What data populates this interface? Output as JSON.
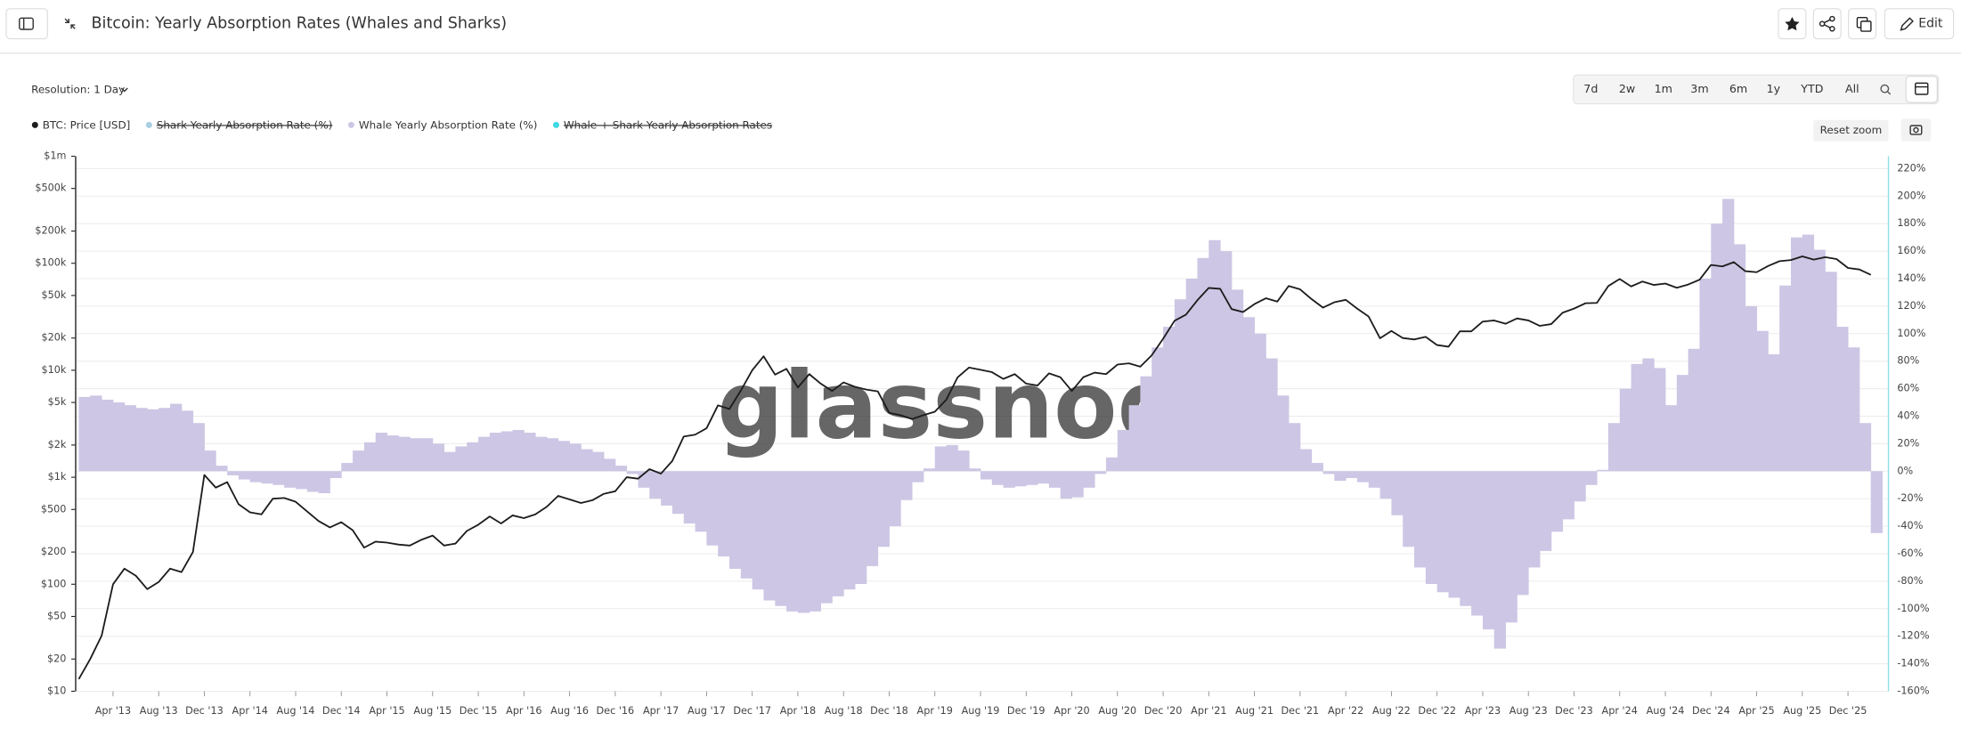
{
  "ui": {
    "title": "Bitcoin: Yearly Absorption Rates (Whales and Sharks)",
    "edit": "Edit",
    "resolution": "Resolution: 1 Day",
    "ranges": [
      "7d",
      "2w",
      "1m",
      "3m",
      "6m",
      "1y",
      "YTD",
      "All"
    ],
    "reset_zoom": "Reset zoom"
  },
  "chart_data": {
    "type": "line",
    "watermark": "glassnode",
    "x": [
      "2013-01",
      "2013-02",
      "2013-03",
      "2013-04",
      "2013-05",
      "2013-06",
      "2013-07",
      "2013-08",
      "2013-09",
      "2013-10",
      "2013-11",
      "2013-12",
      "2014-01",
      "2014-02",
      "2014-03",
      "2014-04",
      "2014-05",
      "2014-06",
      "2014-07",
      "2014-08",
      "2014-09",
      "2014-10",
      "2014-11",
      "2014-12",
      "2015-01",
      "2015-02",
      "2015-03",
      "2015-04",
      "2015-05",
      "2015-06",
      "2015-07",
      "2015-08",
      "2015-09",
      "2015-10",
      "2015-11",
      "2015-12",
      "2016-01",
      "2016-02",
      "2016-03",
      "2016-04",
      "2016-05",
      "2016-06",
      "2016-07",
      "2016-08",
      "2016-09",
      "2016-10",
      "2016-11",
      "2016-12",
      "2017-01",
      "2017-02",
      "2017-03",
      "2017-04",
      "2017-05",
      "2017-06",
      "2017-07",
      "2017-08",
      "2017-09",
      "2017-10",
      "2017-11",
      "2017-12",
      "2018-01",
      "2018-02",
      "2018-03",
      "2018-04",
      "2018-05",
      "2018-06",
      "2018-07",
      "2018-08",
      "2018-09",
      "2018-10",
      "2018-11",
      "2018-12",
      "2019-01",
      "2019-02",
      "2019-03",
      "2019-04",
      "2019-05",
      "2019-06",
      "2019-07",
      "2019-08",
      "2019-09",
      "2019-10",
      "2019-11",
      "2019-12",
      "2020-01",
      "2020-02",
      "2020-03",
      "2020-04",
      "2020-05",
      "2020-06",
      "2020-07",
      "2020-08",
      "2020-09",
      "2020-10",
      "2020-11",
      "2020-12",
      "2021-01",
      "2021-02",
      "2021-03",
      "2021-04",
      "2021-05",
      "2021-06",
      "2021-07",
      "2021-08",
      "2021-09",
      "2021-10",
      "2021-11",
      "2021-12",
      "2022-01",
      "2022-02",
      "2022-03",
      "2022-04",
      "2022-05",
      "2022-06",
      "2022-07",
      "2022-08",
      "2022-09",
      "2022-10",
      "2022-11",
      "2022-12",
      "2023-01",
      "2023-02",
      "2023-03",
      "2023-04",
      "2023-05",
      "2023-06",
      "2023-07",
      "2023-08",
      "2023-09",
      "2023-10",
      "2023-11",
      "2023-12",
      "2024-01",
      "2024-02",
      "2024-03",
      "2024-04",
      "2024-05",
      "2024-06",
      "2024-07",
      "2024-08",
      "2024-09",
      "2024-10",
      "2024-11",
      "2024-12",
      "2025-01",
      "2025-02",
      "2025-03",
      "2025-04",
      "2025-05",
      "2025-06",
      "2025-07",
      "2025-08",
      "2025-09",
      "2025-10",
      "2025-11",
      "2025-12",
      "2026-01",
      "2026-02"
    ],
    "xlim": [
      "2013-01",
      "2026-03"
    ],
    "xticks": [
      {
        "value": "2013-04",
        "label": "Apr '13"
      },
      {
        "value": "2013-08",
        "label": "Aug '13"
      },
      {
        "value": "2013-12",
        "label": "Dec '13"
      },
      {
        "value": "2014-04",
        "label": "Apr '14"
      },
      {
        "value": "2014-08",
        "label": "Aug '14"
      },
      {
        "value": "2014-12",
        "label": "Dec '14"
      },
      {
        "value": "2015-04",
        "label": "Apr '15"
      },
      {
        "value": "2015-08",
        "label": "Aug '15"
      },
      {
        "value": "2015-12",
        "label": "Dec '15"
      },
      {
        "value": "2016-04",
        "label": "Apr '16"
      },
      {
        "value": "2016-08",
        "label": "Aug '16"
      },
      {
        "value": "2016-12",
        "label": "Dec '16"
      },
      {
        "value": "2017-04",
        "label": "Apr '17"
      },
      {
        "value": "2017-08",
        "label": "Aug '17"
      },
      {
        "value": "2017-12",
        "label": "Dec '17"
      },
      {
        "value": "2018-04",
        "label": "Apr '18"
      },
      {
        "value": "2018-08",
        "label": "Aug '18"
      },
      {
        "value": "2018-12",
        "label": "Dec '18"
      },
      {
        "value": "2019-04",
        "label": "Apr '19"
      },
      {
        "value": "2019-08",
        "label": "Aug '19"
      },
      {
        "value": "2019-12",
        "label": "Dec '19"
      },
      {
        "value": "2020-04",
        "label": "Apr '20"
      },
      {
        "value": "2020-08",
        "label": "Aug '20"
      },
      {
        "value": "2020-12",
        "label": "Dec '20"
      },
      {
        "value": "2021-04",
        "label": "Apr '21"
      },
      {
        "value": "2021-08",
        "label": "Aug '21"
      },
      {
        "value": "2021-12",
        "label": "Dec '21"
      },
      {
        "value": "2022-04",
        "label": "Apr '22"
      },
      {
        "value": "2022-08",
        "label": "Aug '22"
      },
      {
        "value": "2022-12",
        "label": "Dec '22"
      },
      {
        "value": "2023-04",
        "label": "Apr '23"
      },
      {
        "value": "2023-08",
        "label": "Aug '23"
      },
      {
        "value": "2023-12",
        "label": "Dec '23"
      },
      {
        "value": "2024-04",
        "label": "Apr '24"
      },
      {
        "value": "2024-08",
        "label": "Aug '24"
      },
      {
        "value": "2024-12",
        "label": "Dec '24"
      },
      {
        "value": "2025-04",
        "label": "Apr '25"
      },
      {
        "value": "2025-08",
        "label": "Aug '25"
      },
      {
        "value": "2025-12",
        "label": "Dec '25"
      }
    ],
    "ylim": [
      10,
      1000000
    ],
    "ylog": true,
    "yticks": [
      {
        "value": 10,
        "label": "$10"
      },
      {
        "value": 20,
        "label": "$20"
      },
      {
        "value": 50,
        "label": "$50"
      },
      {
        "value": 100,
        "label": "$100"
      },
      {
        "value": 200,
        "label": "$200"
      },
      {
        "value": 500,
        "label": "$500"
      },
      {
        "value": 1000,
        "label": "$1k"
      },
      {
        "value": 2000,
        "label": "$2k"
      },
      {
        "value": 5000,
        "label": "$5k"
      },
      {
        "value": 10000,
        "label": "$10k"
      },
      {
        "value": 20000,
        "label": "$20k"
      },
      {
        "value": 50000,
        "label": "$50k"
      },
      {
        "value": 100000,
        "label": "$100k"
      },
      {
        "value": 200000,
        "label": "$200k"
      },
      {
        "value": 500000,
        "label": "$500k"
      },
      {
        "value": 1000000,
        "label": "$1m"
      }
    ],
    "y2lim": [
      -160,
      229
    ],
    "y2ticks": [
      {
        "value": -160,
        "label": "-160%"
      },
      {
        "value": -140,
        "label": "-140%"
      },
      {
        "value": -120,
        "label": "-120%"
      },
      {
        "value": -100,
        "label": "-100%"
      },
      {
        "value": -80,
        "label": "-80%"
      },
      {
        "value": -60,
        "label": "-60%"
      },
      {
        "value": -40,
        "label": "-40%"
      },
      {
        "value": -20,
        "label": "-20%"
      },
      {
        "value": 0,
        "label": "0%"
      },
      {
        "value": 20,
        "label": "20%"
      },
      {
        "value": 40,
        "label": "40%"
      },
      {
        "value": 60,
        "label": "60%"
      },
      {
        "value": 80,
        "label": "80%"
      },
      {
        "value": 100,
        "label": "100%"
      },
      {
        "value": 120,
        "label": "120%"
      },
      {
        "value": 140,
        "label": "140%"
      },
      {
        "value": 160,
        "label": "160%"
      },
      {
        "value": 180,
        "label": "180%"
      },
      {
        "value": 200,
        "label": "200%"
      },
      {
        "value": 220,
        "label": "220%"
      }
    ],
    "grid": true,
    "series": [
      {
        "name": "BTC: Price [USD]",
        "color": "#1c1c1c",
        "axis": "y",
        "values": [
          13,
          20,
          33,
          100,
          140,
          120,
          90,
          105,
          140,
          130,
          200,
          1050,
          800,
          900,
          560,
          470,
          450,
          630,
          640,
          590,
          480,
          390,
          340,
          380,
          320,
          220,
          250,
          245,
          235,
          230,
          260,
          285,
          230,
          240,
          315,
          360,
          430,
          370,
          440,
          415,
          450,
          530,
          670,
          620,
          575,
          610,
          700,
          740,
          1000,
          970,
          1190,
          1080,
          1420,
          2400,
          2500,
          2870,
          4700,
          4350,
          6450,
          10000,
          13500,
          9100,
          10300,
          6900,
          9200,
          7500,
          6400,
          7700,
          7000,
          6600,
          6350,
          4000,
          3800,
          3500,
          3800,
          4100,
          5300,
          8600,
          10600,
          10100,
          9600,
          8300,
          9200,
          7500,
          7200,
          9350,
          8600,
          6400,
          8600,
          9500,
          9200,
          11300,
          11600,
          10800,
          13800,
          19700,
          29000,
          33100,
          45100,
          58800,
          57700,
          37300,
          35000,
          41500,
          47100,
          43800,
          61300,
          57000,
          46300,
          38500,
          43200,
          45500,
          37700,
          31800,
          19900,
          23300,
          20000,
          19400,
          20500,
          17200,
          16600,
          23100,
          23100,
          28500,
          29200,
          27200,
          30500,
          29200,
          26000,
          27000,
          34500,
          37700,
          42300,
          42600,
          61200,
          71300,
          60700,
          67500,
          62700,
          64600,
          59000,
          63300,
          70200,
          96400,
          93400,
          102400,
          84400,
          82500,
          94200,
          104600,
          107100,
          115800,
          108200,
          114000,
          109500,
          90400,
          87500,
          78000
        ]
      },
      {
        "name": "Shark Yearly Absorption Rate (%)",
        "color": "#a9cfe3",
        "axis": "y2",
        "visible": false
      },
      {
        "name": "Whale Yearly Absorption Rate (%)",
        "color": "#cdc6e4",
        "axis": "y2",
        "style": "area",
        "values": [
          54,
          55,
          52,
          50,
          48,
          46,
          45,
          46,
          49,
          44,
          35,
          15,
          4,
          -3,
          -6,
          -8,
          -9,
          -10,
          -12,
          -13,
          -15,
          -16,
          -5,
          6,
          15,
          21,
          28,
          26,
          25,
          24,
          24,
          20,
          14,
          18,
          21,
          25,
          28,
          29,
          30,
          28,
          25,
          24,
          22,
          20,
          16,
          14,
          9,
          4,
          -2,
          -12,
          -20,
          -25,
          -31,
          -38,
          -44,
          -54,
          -62,
          -71,
          -78,
          -86,
          -94,
          -98,
          -102,
          -103,
          -102,
          -96,
          -91,
          -86,
          -82,
          -69,
          -55,
          -40,
          -21,
          -8,
          2,
          18,
          19,
          15,
          2,
          -6,
          -10,
          -12,
          -11,
          -10,
          -9,
          -12,
          -20,
          -19,
          -12,
          -2,
          10,
          30,
          48,
          69,
          90,
          105,
          125,
          140,
          155,
          168,
          160,
          132,
          112,
          100,
          82,
          55,
          35,
          16,
          6,
          -2,
          -7,
          -5,
          -8,
          -12,
          -20,
          -32,
          -55,
          -70,
          -82,
          -88,
          -92,
          -98,
          -105,
          -115,
          -129,
          -110,
          -90,
          -70,
          -58,
          -44,
          -35,
          -22,
          -10,
          1,
          35,
          60,
          78,
          82,
          75,
          48,
          70,
          89,
          140,
          180,
          198,
          165,
          120,
          102,
          85,
          135,
          170,
          172,
          161,
          145,
          105,
          90,
          35,
          -45
        ]
      },
      {
        "name": "Whale + Shark Yearly Absorption Rates",
        "color": "#3fd9e6",
        "axis": "y2",
        "visible": false
      }
    ]
  }
}
